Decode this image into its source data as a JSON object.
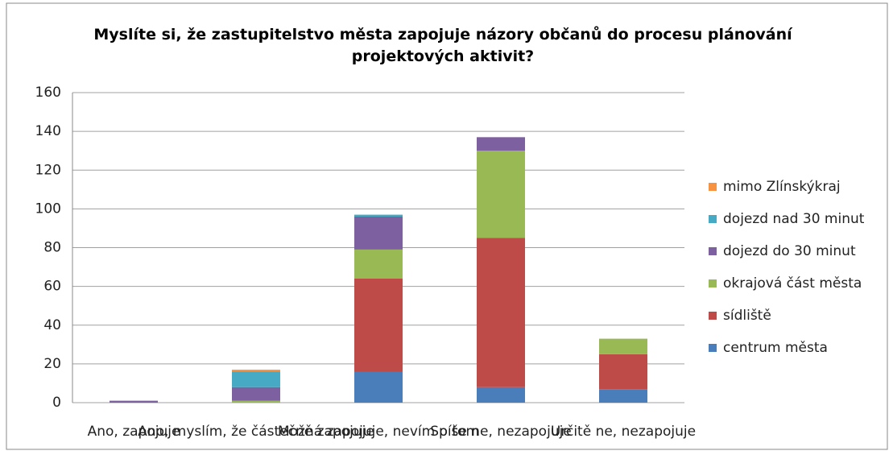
{
  "chart_data": {
    "type": "bar",
    "stacked": true,
    "title": "Myslíte si, že zastupitelstvo města zapojuje názory občanů do procesu plánování projektových aktivit?",
    "categories": [
      "Ano, zapojuje",
      "Ano, myslím, že částečně zapojuje",
      "Možná zapojuje, nevím o tom",
      "Spíše ne, nezapojuje",
      "Určitě ne, nezapojuje"
    ],
    "series": [
      {
        "name": "centrum města",
        "color": "#4a7ebb",
        "values": [
          0,
          0,
          16,
          8,
          7
        ]
      },
      {
        "name": "sídliště",
        "color": "#be4b48",
        "values": [
          0,
          0,
          48,
          77,
          18
        ]
      },
      {
        "name": "okrajová část města",
        "color": "#98b954",
        "values": [
          0,
          1,
          15,
          45,
          8
        ]
      },
      {
        "name": "dojezd do 30 minut",
        "color": "#7d60a0",
        "values": [
          1,
          7,
          17,
          7,
          0
        ]
      },
      {
        "name": "dojezd nad 30 minut",
        "color": "#46aac5",
        "values": [
          0,
          8,
          1,
          0,
          0
        ]
      },
      {
        "name": "mimo Zlínskýkraj",
        "color": "#f69240",
        "values": [
          0,
          1,
          0,
          0,
          0
        ]
      }
    ],
    "ylim": [
      0,
      160
    ],
    "yticks": [
      0,
      20,
      40,
      60,
      80,
      100,
      120,
      140,
      160
    ],
    "grid": true,
    "legend": "right"
  }
}
